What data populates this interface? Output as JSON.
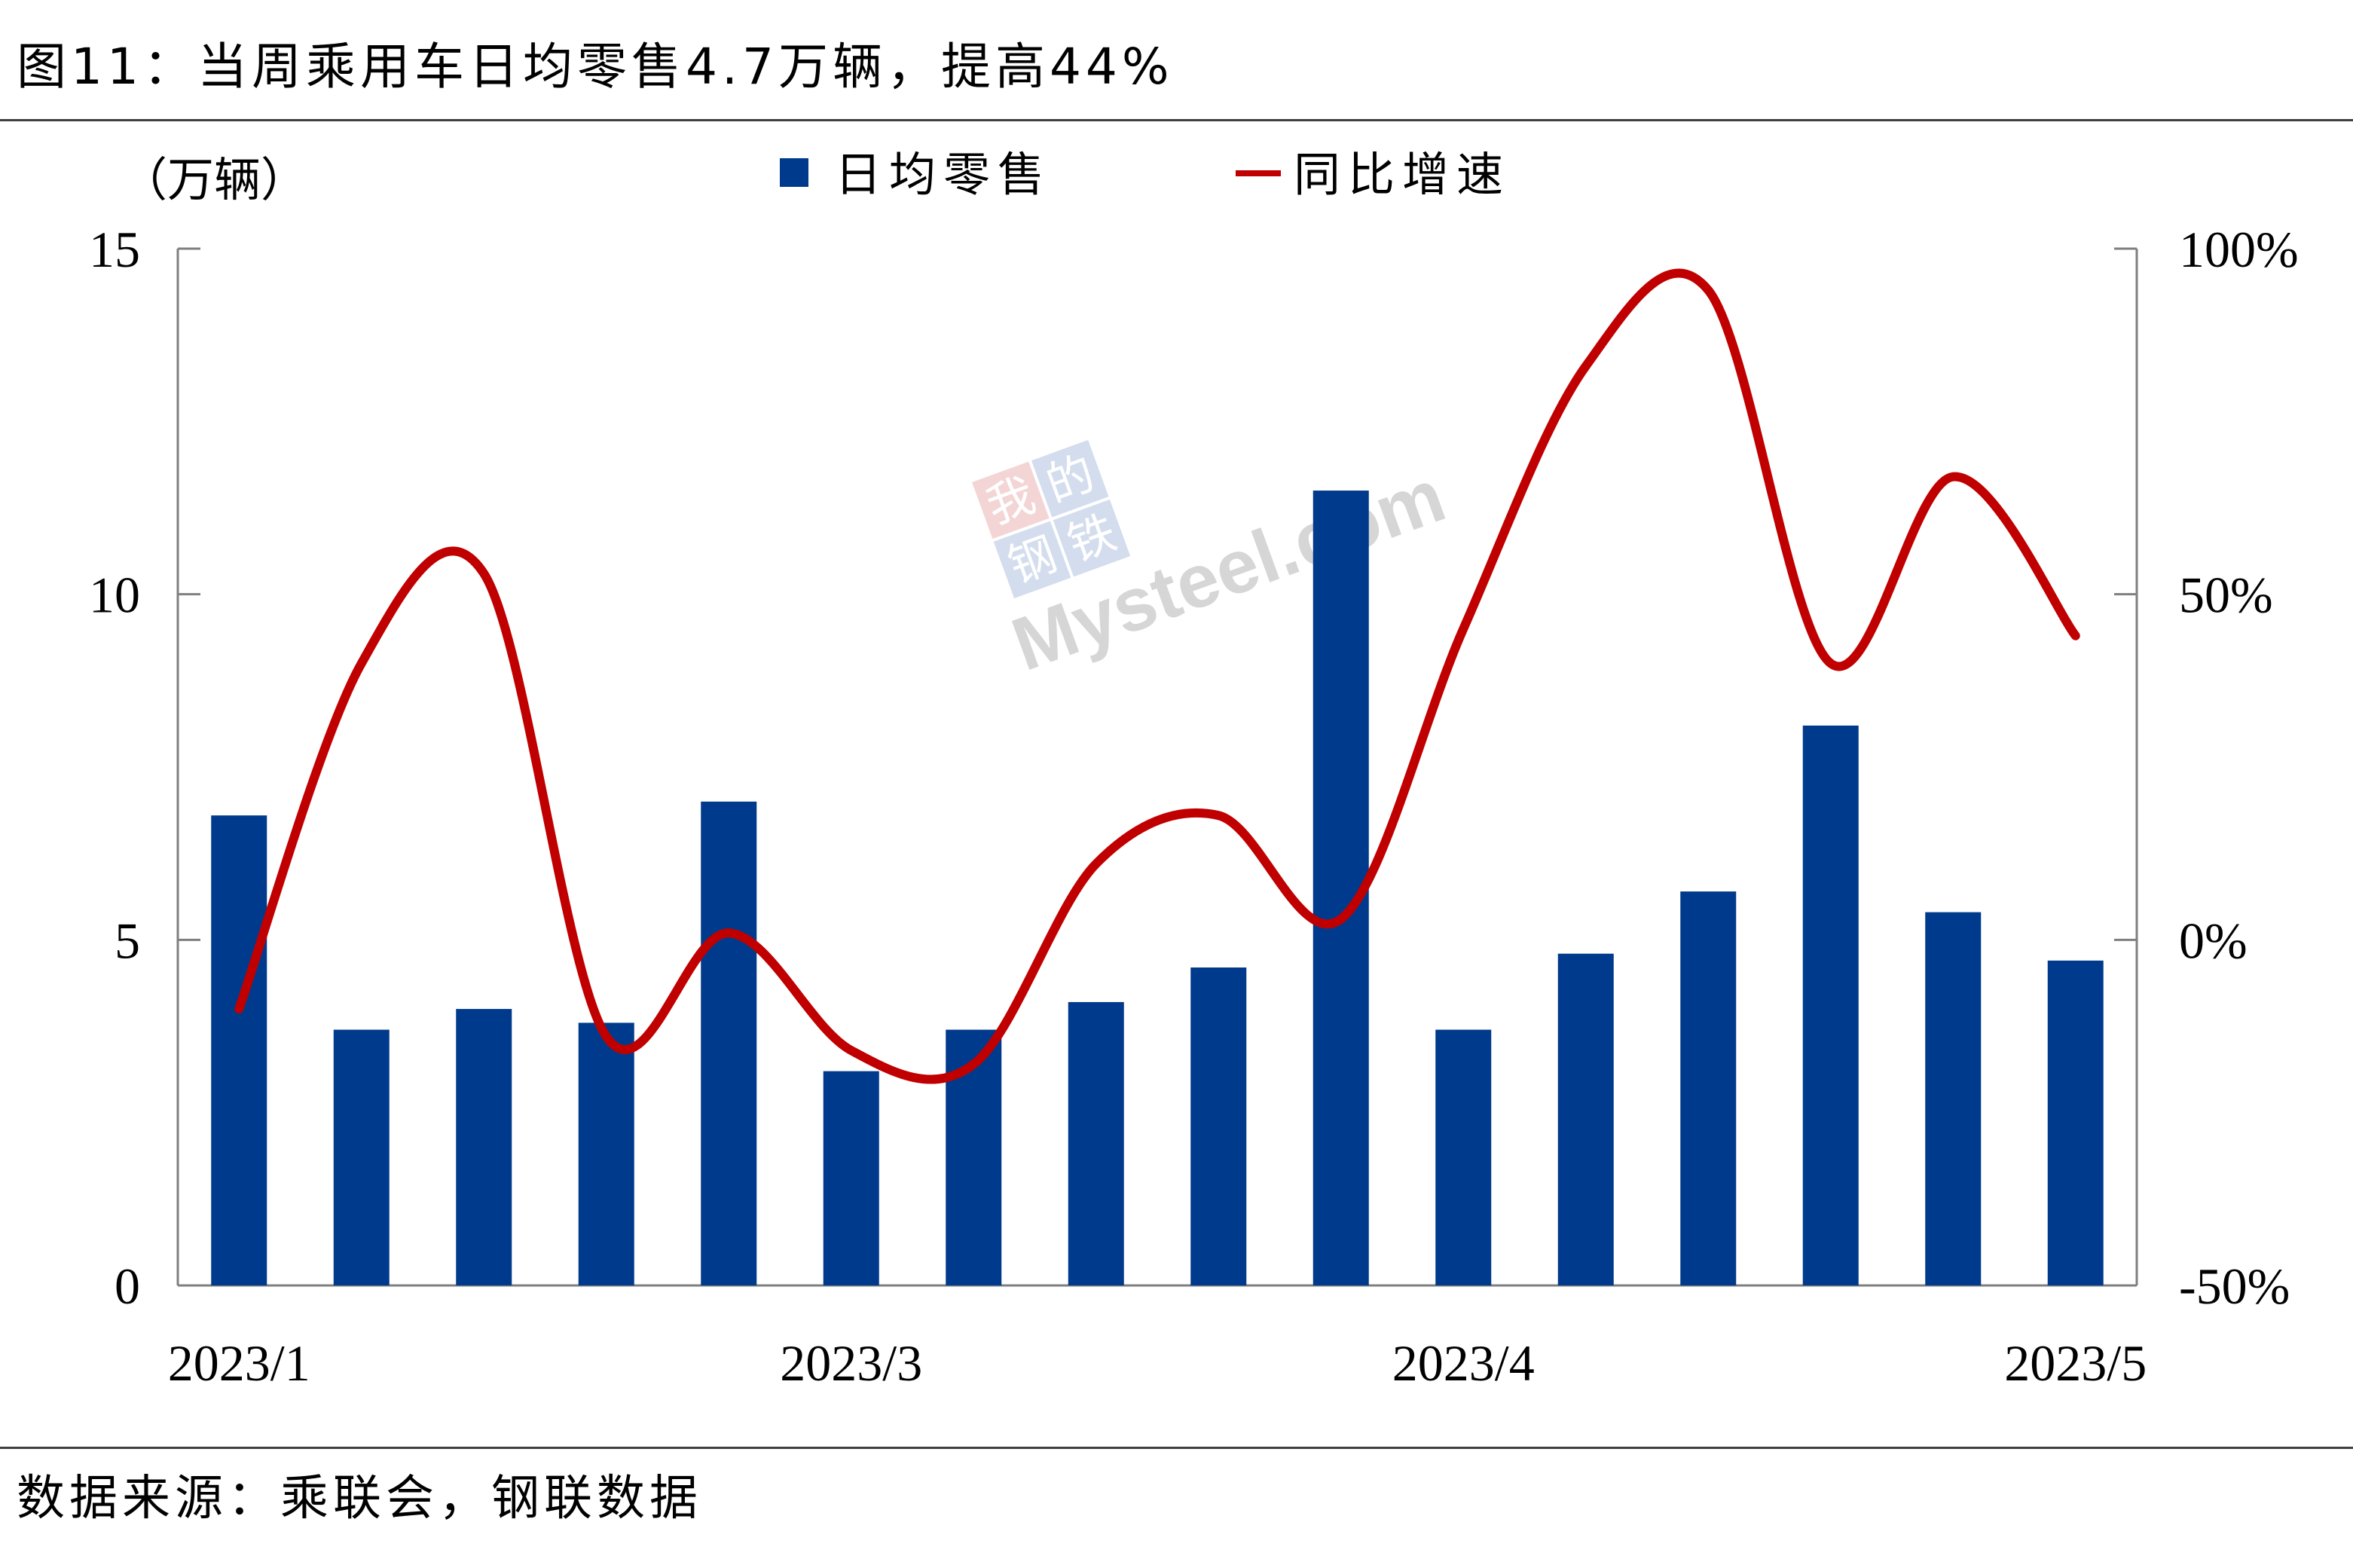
{
  "figure_title": "图11：当周乘用车日均零售4.7万辆，提高44%",
  "source_note": "数据来源：乘联会，钢联数据",
  "watermark": {
    "logo_chars": [
      "我",
      "的",
      "钢",
      "铁"
    ],
    "text": "Mysteel.com"
  },
  "colors": {
    "bar": "#003A8C",
    "line": "#C00000",
    "axis": "#7F7F7F",
    "rule": "#404040"
  },
  "chart_data": {
    "type": "bar+line",
    "y_left_unit": "（万辆）",
    "ylim_left": [
      0,
      15
    ],
    "yticks_left": [
      "0",
      "5",
      "10",
      "15"
    ],
    "ylim_right": [
      -50,
      100
    ],
    "yticks_right": [
      "-50%",
      "0%",
      "50%",
      "100%"
    ],
    "x_tick_labels": [
      {
        "index": 0,
        "label": "2023/1"
      },
      {
        "index": 5,
        "label": "2023/3"
      },
      {
        "index": 10,
        "label": "2023/4"
      },
      {
        "index": 15,
        "label": "2023/5"
      }
    ],
    "legend_position": "top-center",
    "grid": false,
    "series": [
      {
        "name": "日均零售",
        "type": "bar",
        "axis": "left",
        "values": [
          6.8,
          3.7,
          4.0,
          3.8,
          7.0,
          3.1,
          3.7,
          4.1,
          4.6,
          11.5,
          3.7,
          4.8,
          5.7,
          8.1,
          5.4,
          4.7
        ]
      },
      {
        "name": "同比增速",
        "type": "line",
        "axis": "right",
        "values": [
          -10,
          40,
          53,
          -14,
          1,
          -16,
          -18,
          11,
          18,
          3,
          45,
          83,
          94,
          40,
          67,
          44
        ]
      }
    ]
  }
}
